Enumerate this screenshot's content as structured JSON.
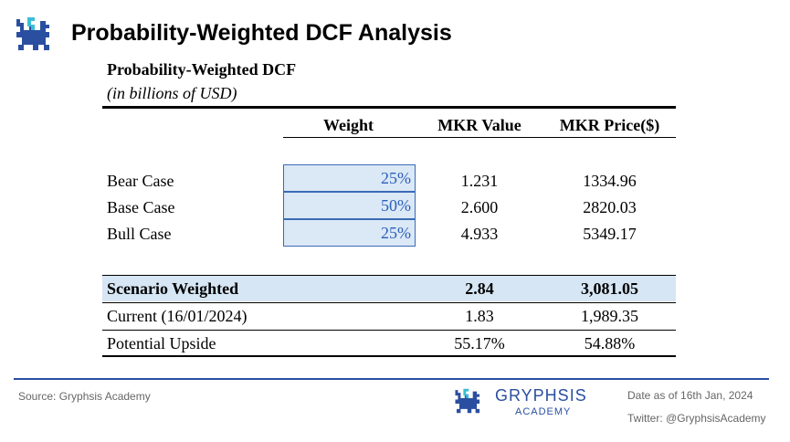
{
  "header": {
    "title": "Probability-Weighted DCF Analysis",
    "logo": "gryphon-logo"
  },
  "table": {
    "title": "Probability-Weighted DCF",
    "unit": "(in billions of USD)",
    "columns": [
      "Weight",
      "MKR Value",
      "MKR Price($)"
    ],
    "scenarios": [
      {
        "label": "Bear Case",
        "weight": "25%",
        "value": "1.231",
        "price": "1334.96"
      },
      {
        "label": "Base Case",
        "weight": "50%",
        "value": "2.600",
        "price": "2820.03"
      },
      {
        "label": "Bull Case",
        "weight": "25%",
        "value": "4.933",
        "price": "5349.17"
      }
    ],
    "summary": [
      {
        "label": "Scenario Weighted",
        "value": "2.84",
        "price": "3,081.05"
      },
      {
        "label": "Current (16/01/2024)",
        "value": "1.83",
        "price": "1,989.35"
      },
      {
        "label": "Potential Upside",
        "value": "55.17%",
        "price": "54.88%"
      }
    ]
  },
  "footer": {
    "source": "Source: Gryphsis Academy",
    "brand": "GRYPHSIS",
    "brand_sub": "ACADEMY",
    "date": "Date as of 16th Jan, 2024",
    "twitter": "Twitter: @GryphsisAcademy"
  },
  "colors": {
    "accent": "#2a4fa0",
    "highlight": "#d6e6f4",
    "logo_light": "#3bbfd6"
  }
}
